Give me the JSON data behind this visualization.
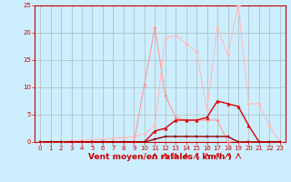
{
  "background_color": "#cceeff",
  "grid_color": "#aabbbb",
  "xlabel": "Vent moyen/en rafales ( km/h )",
  "xlabel_color": "#cc0000",
  "xlim": [
    -0.5,
    23.5
  ],
  "ylim": [
    0,
    25
  ],
  "xticks": [
    0,
    1,
    2,
    3,
    4,
    5,
    6,
    7,
    8,
    9,
    10,
    11,
    12,
    13,
    14,
    15,
    16,
    17,
    18,
    19,
    20,
    21,
    22,
    23
  ],
  "yticks": [
    0,
    5,
    10,
    15,
    20,
    25
  ],
  "series": [
    {
      "x": [
        0,
        1,
        2,
        3,
        4,
        5,
        6,
        7,
        8,
        9,
        10,
        11,
        12,
        13,
        14,
        15,
        16,
        17,
        18,
        19,
        20,
        21,
        22,
        23
      ],
      "y": [
        0,
        0,
        0,
        0.2,
        0.3,
        0.4,
        0.5,
        0.7,
        0.8,
        1.0,
        1.5,
        3.0,
        19.0,
        19.5,
        18.0,
        16.5,
        6.0,
        21.0,
        16.0,
        25.0,
        7.0,
        7.0,
        3.0,
        0.0
      ],
      "color": "#ffbbbb",
      "marker": "D",
      "linewidth": 0.8,
      "markersize": 2.0
    },
    {
      "x": [
        0,
        1,
        2,
        3,
        4,
        5,
        6,
        7,
        8,
        9,
        10,
        11,
        12,
        13,
        14,
        15,
        16,
        17,
        18,
        19,
        20,
        21,
        22,
        23
      ],
      "y": [
        0,
        0,
        0,
        0,
        0,
        0,
        0,
        0,
        0,
        0,
        10.5,
        21.0,
        8.5,
        4.5,
        4.0,
        4.0,
        4.0,
        4.0,
        0,
        0,
        0,
        0,
        0,
        0
      ],
      "color": "#ff9999",
      "marker": "o",
      "linewidth": 0.8,
      "markersize": 2.0
    },
    {
      "x": [
        0,
        1,
        2,
        3,
        4,
        5,
        6,
        7,
        8,
        9,
        10,
        11,
        12,
        13,
        14,
        15,
        16,
        17,
        18,
        19,
        20,
        21,
        22,
        23
      ],
      "y": [
        0,
        0,
        0,
        0,
        0,
        0,
        0,
        0,
        0,
        0,
        0,
        2.0,
        2.5,
        4.0,
        4.0,
        4.0,
        4.5,
        7.5,
        7.0,
        6.5,
        3.0,
        0,
        0,
        0
      ],
      "color": "#dd0000",
      "marker": "^",
      "linewidth": 1.0,
      "markersize": 2.5
    },
    {
      "x": [
        0,
        1,
        2,
        3,
        4,
        5,
        6,
        7,
        8,
        9,
        10,
        11,
        12,
        13,
        14,
        15,
        16,
        17,
        18,
        19,
        20,
        21,
        22,
        23
      ],
      "y": [
        0,
        0,
        0,
        0,
        0,
        0,
        0,
        0,
        0,
        0,
        0,
        0.5,
        1.0,
        1.0,
        1.0,
        1.0,
        1.0,
        1.0,
        1.0,
        0,
        0,
        0,
        0,
        0
      ],
      "color": "#990000",
      "marker": "s",
      "linewidth": 1.0,
      "markersize": 2.0
    }
  ],
  "tick_fontsize": 5,
  "label_fontsize": 6.5
}
